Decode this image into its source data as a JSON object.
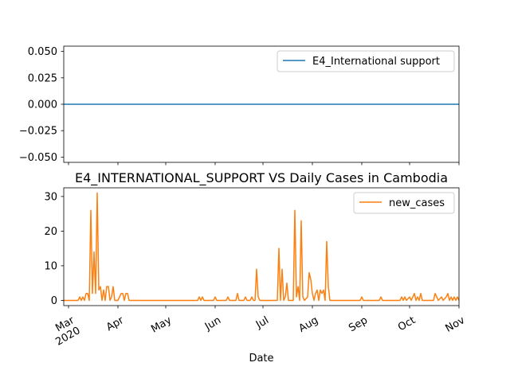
{
  "chart_data": [
    {
      "type": "line",
      "title": "",
      "xlabel": "",
      "ylabel": "",
      "ylim": [
        -0.055,
        0.055
      ],
      "yticks": [
        "0.050",
        "0.025",
        "0.000",
        "−0.025",
        "−0.050"
      ],
      "ytick_values": [
        0.05,
        0.025,
        0.0,
        -0.025,
        -0.05
      ],
      "legend_position": "upper right",
      "series": [
        {
          "name": "E4_International support",
          "color": "#1f77b4",
          "constant_value": 0.0
        }
      ]
    },
    {
      "type": "line",
      "title": "E4_INTERNATIONAL_SUPPORT VS Daily Cases in Cambodia",
      "xlabel": "Date",
      "ylabel": "",
      "x_range": [
        "2020-02-27",
        "2020-11-01"
      ],
      "ylim": [
        -1.5,
        32.5
      ],
      "yticks": [
        "0",
        "10",
        "20",
        "30"
      ],
      "ytick_values": [
        0,
        10,
        20,
        30
      ],
      "xticks": [
        {
          "date": "2020-03-01",
          "label": "Mar",
          "sublabel": "2020"
        },
        {
          "date": "2020-04-01",
          "label": "Apr",
          "sublabel": ""
        },
        {
          "date": "2020-05-01",
          "label": "May",
          "sublabel": ""
        },
        {
          "date": "2020-06-01",
          "label": "Jun",
          "sublabel": ""
        },
        {
          "date": "2020-07-01",
          "label": "Jul",
          "sublabel": ""
        },
        {
          "date": "2020-08-01",
          "label": "Aug",
          "sublabel": ""
        },
        {
          "date": "2020-09-01",
          "label": "Sep",
          "sublabel": ""
        },
        {
          "date": "2020-10-01",
          "label": "Oct",
          "sublabel": ""
        },
        {
          "date": "2020-11-01",
          "label": "Nov",
          "sublabel": ""
        }
      ],
      "legend_position": "upper right",
      "series": [
        {
          "name": "new_cases",
          "color": "#ff7f0e",
          "points": [
            [
              "2020-02-27",
              0
            ],
            [
              "2020-03-07",
              0
            ],
            [
              "2020-03-08",
              1
            ],
            [
              "2020-03-09",
              0
            ],
            [
              "2020-03-10",
              1
            ],
            [
              "2020-03-11",
              0
            ],
            [
              "2020-03-12",
              2
            ],
            [
              "2020-03-13",
              2
            ],
            [
              "2020-03-14",
              0
            ],
            [
              "2020-03-15",
              26
            ],
            [
              "2020-03-16",
              2
            ],
            [
              "2020-03-17",
              14
            ],
            [
              "2020-03-18",
              2
            ],
            [
              "2020-03-19",
              31
            ],
            [
              "2020-03-20",
              3
            ],
            [
              "2020-03-21",
              4
            ],
            [
              "2020-03-22",
              0
            ],
            [
              "2020-03-23",
              3
            ],
            [
              "2020-03-24",
              0
            ],
            [
              "2020-03-25",
              4
            ],
            [
              "2020-03-26",
              4
            ],
            [
              "2020-03-27",
              0
            ],
            [
              "2020-03-28",
              1
            ],
            [
              "2020-03-29",
              4
            ],
            [
              "2020-03-30",
              0
            ],
            [
              "2020-04-01",
              0
            ],
            [
              "2020-04-02",
              1
            ],
            [
              "2020-04-03",
              2
            ],
            [
              "2020-04-04",
              2
            ],
            [
              "2020-04-05",
              0
            ],
            [
              "2020-04-06",
              2
            ],
            [
              "2020-04-07",
              2
            ],
            [
              "2020-04-08",
              0
            ],
            [
              "2020-05-21",
              0
            ],
            [
              "2020-05-22",
              1
            ],
            [
              "2020-05-23",
              0
            ],
            [
              "2020-05-24",
              1
            ],
            [
              "2020-05-25",
              0
            ],
            [
              "2020-05-31",
              0
            ],
            [
              "2020-06-01",
              1
            ],
            [
              "2020-06-02",
              0
            ],
            [
              "2020-06-08",
              0
            ],
            [
              "2020-06-09",
              1
            ],
            [
              "2020-06-10",
              0
            ],
            [
              "2020-06-14",
              0
            ],
            [
              "2020-06-15",
              2
            ],
            [
              "2020-06-16",
              0
            ],
            [
              "2020-06-19",
              0
            ],
            [
              "2020-06-20",
              1
            ],
            [
              "2020-06-21",
              0
            ],
            [
              "2020-06-23",
              0
            ],
            [
              "2020-06-24",
              1
            ],
            [
              "2020-06-25",
              0
            ],
            [
              "2020-06-26",
              0
            ],
            [
              "2020-06-27",
              9
            ],
            [
              "2020-06-28",
              1
            ],
            [
              "2020-06-29",
              0
            ],
            [
              "2020-07-10",
              0
            ],
            [
              "2020-07-11",
              15
            ],
            [
              "2020-07-12",
              0
            ],
            [
              "2020-07-13",
              9
            ],
            [
              "2020-07-14",
              0
            ],
            [
              "2020-07-15",
              1
            ],
            [
              "2020-07-16",
              5
            ],
            [
              "2020-07-17",
              0
            ],
            [
              "2020-07-20",
              0
            ],
            [
              "2020-07-21",
              26
            ],
            [
              "2020-07-22",
              1
            ],
            [
              "2020-07-23",
              4
            ],
            [
              "2020-07-24",
              0
            ],
            [
              "2020-07-25",
              23
            ],
            [
              "2020-07-26",
              1
            ],
            [
              "2020-07-27",
              0
            ],
            [
              "2020-07-29",
              1
            ],
            [
              "2020-07-30",
              8
            ],
            [
              "2020-07-31",
              6
            ],
            [
              "2020-08-01",
              2
            ],
            [
              "2020-08-02",
              0
            ],
            [
              "2020-08-03",
              2
            ],
            [
              "2020-08-04",
              3
            ],
            [
              "2020-08-05",
              0
            ],
            [
              "2020-08-06",
              3
            ],
            [
              "2020-08-07",
              2
            ],
            [
              "2020-08-08",
              3
            ],
            [
              "2020-08-09",
              0
            ],
            [
              "2020-08-10",
              17
            ],
            [
              "2020-08-11",
              4
            ],
            [
              "2020-08-12",
              0
            ],
            [
              "2020-08-31",
              0
            ],
            [
              "2020-09-01",
              1
            ],
            [
              "2020-09-02",
              0
            ],
            [
              "2020-09-12",
              0
            ],
            [
              "2020-09-13",
              1
            ],
            [
              "2020-09-14",
              0
            ],
            [
              "2020-09-25",
              0
            ],
            [
              "2020-09-26",
              1
            ],
            [
              "2020-09-27",
              0
            ],
            [
              "2020-09-28",
              1
            ],
            [
              "2020-09-29",
              0
            ],
            [
              "2020-10-01",
              1
            ],
            [
              "2020-10-02",
              0
            ],
            [
              "2020-10-04",
              2
            ],
            [
              "2020-10-05",
              0
            ],
            [
              "2020-10-06",
              1
            ],
            [
              "2020-10-07",
              0
            ],
            [
              "2020-10-08",
              2
            ],
            [
              "2020-10-09",
              0
            ],
            [
              "2020-10-16",
              0
            ],
            [
              "2020-10-17",
              2
            ],
            [
              "2020-10-18",
              1
            ],
            [
              "2020-10-19",
              0
            ],
            [
              "2020-10-21",
              1
            ],
            [
              "2020-10-22",
              0
            ],
            [
              "2020-10-24",
              1
            ],
            [
              "2020-10-25",
              2
            ],
            [
              "2020-10-26",
              0
            ],
            [
              "2020-10-27",
              1
            ],
            [
              "2020-10-28",
              0
            ],
            [
              "2020-10-29",
              1
            ],
            [
              "2020-10-30",
              0
            ],
            [
              "2020-10-31",
              1
            ],
            [
              "2020-11-01",
              0
            ]
          ]
        }
      ]
    }
  ]
}
